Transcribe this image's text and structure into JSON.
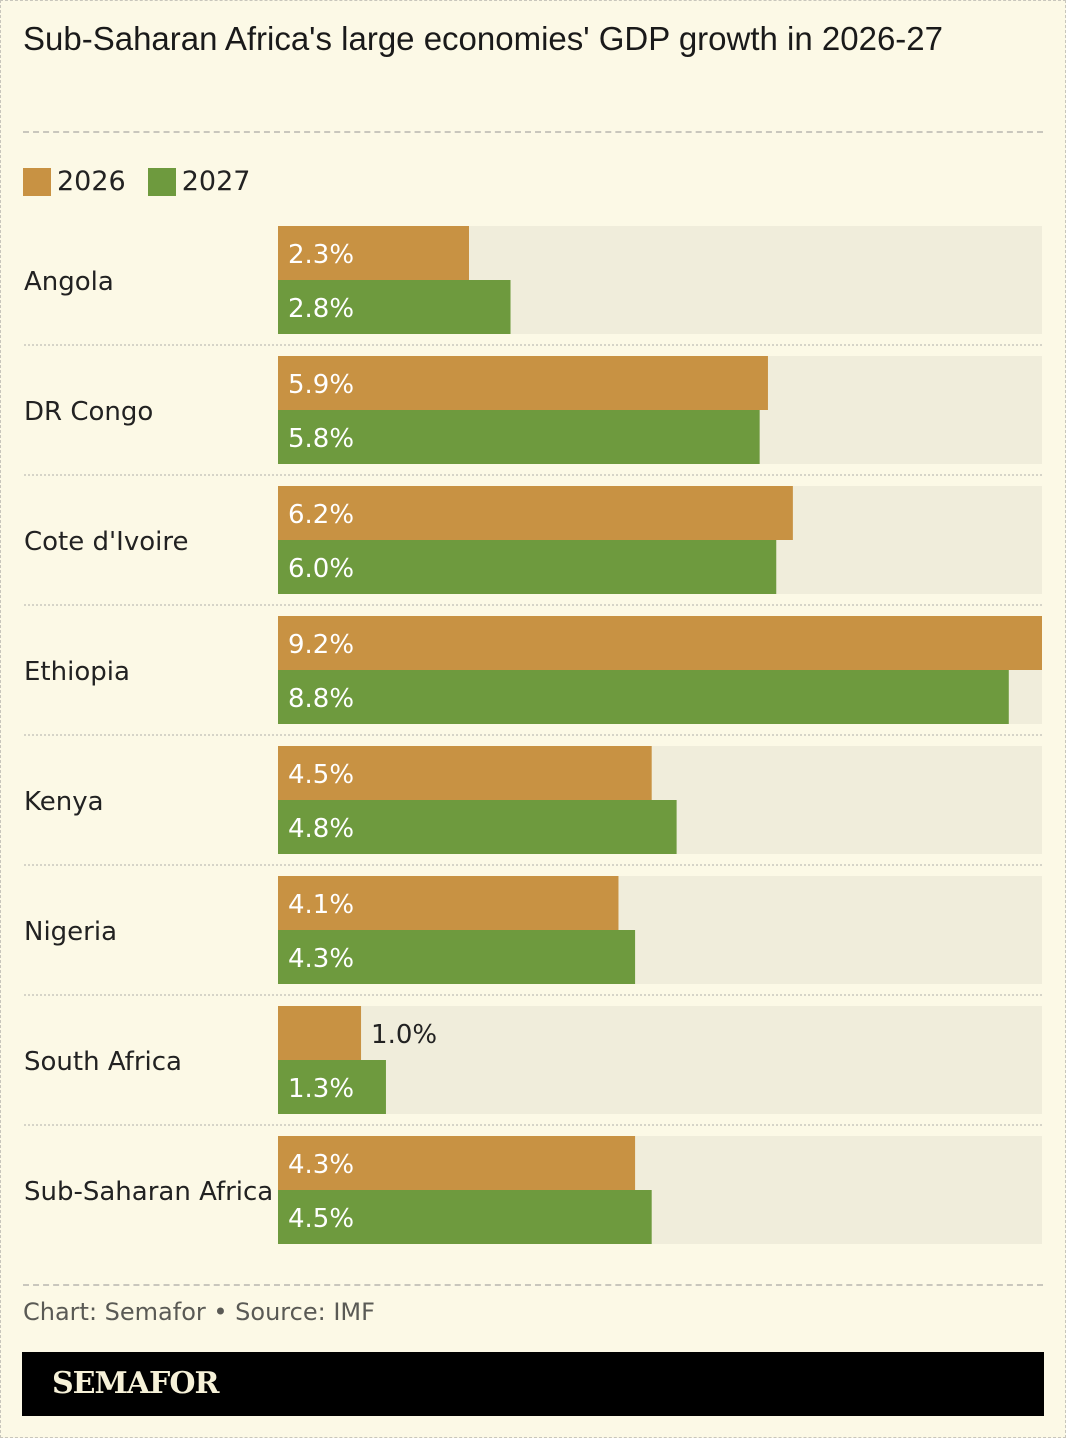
{
  "title": "Sub-Saharan Africa's large economies' GDP growth in 2026-27",
  "source": "Chart: Semafor • Source: IMF",
  "logo": "SEMAFOR",
  "chart_data": {
    "type": "bar",
    "orientation": "horizontal",
    "categories": [
      "Angola",
      "DR Congo",
      "Cote d'Ivoire",
      "Ethiopia",
      "Kenya",
      "Nigeria",
      "South Africa",
      "Sub-Saharan Africa"
    ],
    "series": [
      {
        "name": "2026",
        "color": "#c89243",
        "values": [
          2.3,
          5.9,
          6.2,
          9.2,
          4.5,
          4.1,
          1.0,
          4.3
        ]
      },
      {
        "name": "2027",
        "color": "#6e9a3e",
        "values": [
          2.8,
          5.8,
          6.0,
          8.8,
          4.8,
          4.3,
          1.3,
          4.5
        ]
      }
    ],
    "value_suffix": "%",
    "xlim": [
      0,
      9.2
    ],
    "track_color": "#f0eddb",
    "legend": "top-left",
    "grid": false
  }
}
